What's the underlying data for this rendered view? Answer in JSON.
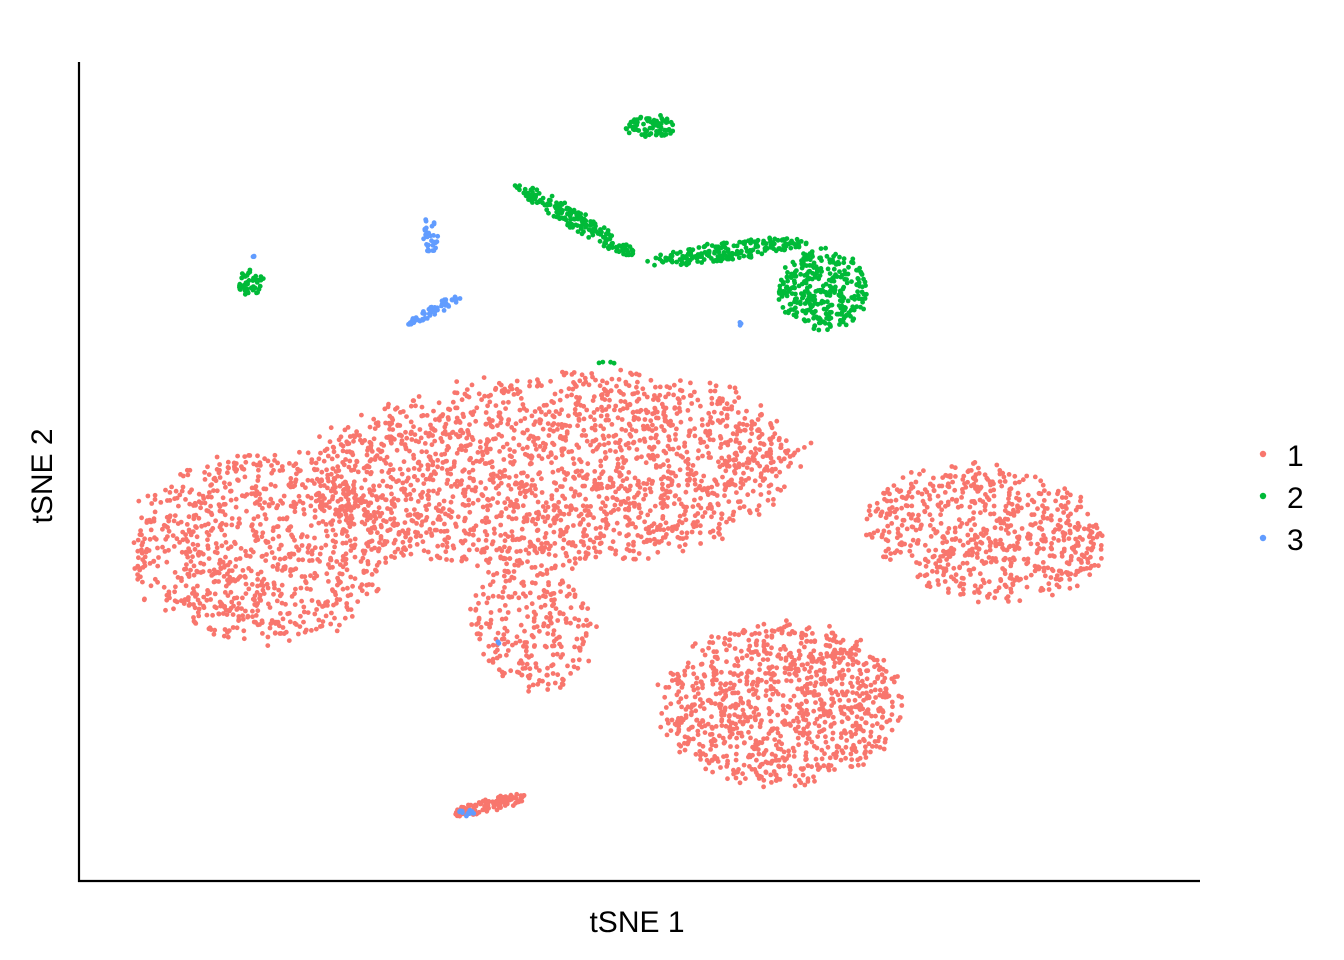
{
  "chart_data": {
    "type": "scatter",
    "title": "",
    "xlabel": "tSNE 1",
    "ylabel": "tSNE 2",
    "xlim": [
      0,
      100
    ],
    "ylim": [
      0,
      100
    ],
    "x_ticks": "none",
    "y_ticks": "none",
    "grid": false,
    "legend_position": "right",
    "point_size": "small",
    "series": [
      {
        "name": "1",
        "color": "#F8766D",
        "approx_points": 5200
      },
      {
        "name": "2",
        "color": "#00BA38",
        "approx_points": 900
      },
      {
        "name": "3",
        "color": "#619CFF",
        "approx_points": 110
      }
    ],
    "clusters": [
      {
        "series": "1",
        "shape": "ellipse",
        "cx": 15,
        "cy": 40,
        "rx": 13,
        "ry": 13,
        "rot": 0,
        "n": 900
      },
      {
        "series": "1",
        "shape": "ellipse",
        "cx": 42,
        "cy": 50,
        "rx": 25,
        "ry": 13,
        "rot": 5,
        "n": 2000
      },
      {
        "series": "1",
        "shape": "ellipse",
        "cx": 40,
        "cy": 30,
        "rx": 6,
        "ry": 9,
        "rot": 10,
        "n": 260
      },
      {
        "series": "1",
        "shape": "ellipse",
        "cx": 63,
        "cy": 20,
        "rx": 12,
        "ry": 11,
        "rot": 0,
        "n": 1000
      },
      {
        "series": "1",
        "shape": "ellipse",
        "cx": 82,
        "cy": 42,
        "rx": 12,
        "ry": 9,
        "rot": -20,
        "n": 700
      },
      {
        "series": "1",
        "shape": "ellipse",
        "cx": 36,
        "cy": 7,
        "rx": 4,
        "ry": 0.9,
        "rot": 18,
        "n": 110
      },
      {
        "series": "2",
        "shape": "ellipse",
        "cx": 14,
        "cy": 74,
        "rx": 1.3,
        "ry": 1.8,
        "rot": 0,
        "n": 50
      },
      {
        "series": "2",
        "shape": "ellipse",
        "cx": 51,
        "cy": 94,
        "rx": 2.4,
        "ry": 1.6,
        "rot": 0,
        "n": 80
      },
      {
        "series": "2",
        "shape": "ellipse",
        "cx": 44,
        "cy": 82,
        "rx": 8,
        "ry": 1.2,
        "rot": -40,
        "n": 180
      },
      {
        "series": "2",
        "shape": "ellipse",
        "cx": 58,
        "cy": 78,
        "rx": 8,
        "ry": 1.3,
        "rot": 10,
        "n": 200
      },
      {
        "series": "2",
        "shape": "ellipse",
        "cx": 67,
        "cy": 73,
        "rx": 4.5,
        "ry": 5.5,
        "rot": 0,
        "n": 330
      },
      {
        "series": "2",
        "shape": "ellipse",
        "cx": 47,
        "cy": 63.7,
        "rx": 1,
        "ry": 0.3,
        "rot": 0,
        "n": 4
      },
      {
        "series": "3",
        "shape": "ellipse",
        "cx": 30.5,
        "cy": 80,
        "rx": 0.8,
        "ry": 2.6,
        "rot": 0,
        "n": 30
      },
      {
        "series": "3",
        "shape": "ellipse",
        "cx": 31,
        "cy": 70.5,
        "rx": 3.8,
        "ry": 0.6,
        "rot": 38,
        "n": 55
      },
      {
        "series": "3",
        "shape": "ellipse",
        "cx": 14.2,
        "cy": 77.3,
        "rx": 0.3,
        "ry": 0.3,
        "rot": 0,
        "n": 3
      },
      {
        "series": "3",
        "shape": "ellipse",
        "cx": 59.2,
        "cy": 68.8,
        "rx": 0.3,
        "ry": 0.3,
        "rot": 0,
        "n": 3
      },
      {
        "series": "3",
        "shape": "ellipse",
        "cx": 33.5,
        "cy": 6,
        "rx": 1.5,
        "ry": 0.5,
        "rot": 0,
        "n": 12
      },
      {
        "series": "3",
        "shape": "ellipse",
        "cx": 37,
        "cy": 28,
        "rx": 0.3,
        "ry": 0.3,
        "rot": 0,
        "n": 2
      }
    ]
  }
}
